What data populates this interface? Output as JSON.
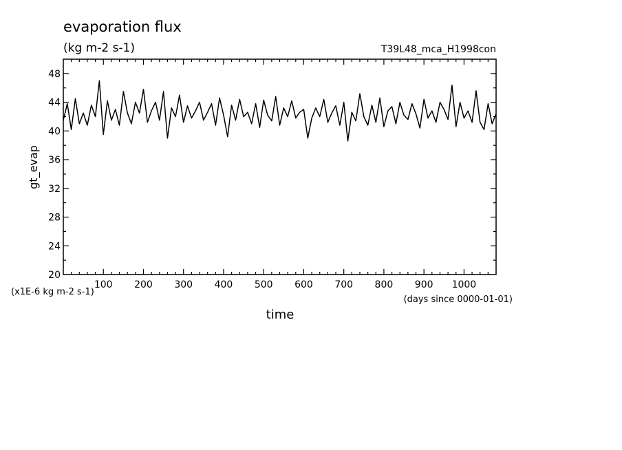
{
  "chart_data": {
    "type": "line",
    "title": "evaporation flux",
    "subtitle": "(kg m-2 s-1)",
    "run_label": "T39L48_mca_H1998con",
    "xlabel": "time",
    "x_unit_note": "(days since 0000-01-01)",
    "ylabel": "gt_evap",
    "y_unit_note": "(x1E-6 kg m-2 s-1)",
    "xlim": [
      0,
      1080
    ],
    "ylim": [
      20,
      50
    ],
    "xticks": [
      100,
      200,
      300,
      400,
      500,
      600,
      700,
      800,
      900,
      1000
    ],
    "yticks": [
      20,
      24,
      28,
      32,
      36,
      40,
      44,
      48
    ],
    "grid": false,
    "series": [
      {
        "x": [
          0,
          10,
          20,
          30,
          40,
          50,
          60,
          70,
          80,
          90,
          100,
          110,
          120,
          130,
          140,
          150,
          160,
          170,
          180,
          190,
          200,
          210,
          220,
          230,
          240,
          250,
          260,
          270,
          280,
          290,
          300,
          310,
          320,
          330,
          340,
          350,
          360,
          370,
          380,
          390,
          400,
          410,
          420,
          430,
          440,
          450,
          460,
          470,
          480,
          490,
          500,
          510,
          520,
          530,
          540,
          550,
          560,
          570,
          580,
          590,
          600,
          610,
          620,
          630,
          640,
          650,
          660,
          670,
          680,
          690,
          700,
          710,
          720,
          730,
          740,
          750,
          760,
          770,
          780,
          790,
          800,
          810,
          820,
          830,
          840,
          850,
          860,
          870,
          880,
          890,
          900,
          910,
          920,
          930,
          940,
          950,
          960,
          970,
          980,
          990,
          1000,
          1010,
          1020,
          1030,
          1040,
          1050,
          1060,
          1070,
          1080
        ],
        "values": [
          41.5,
          43.8,
          40.2,
          44.5,
          41.0,
          42.5,
          40.8,
          43.6,
          42.0,
          47.0,
          39.5,
          44.2,
          41.5,
          43.0,
          40.8,
          45.5,
          42.5,
          41.0,
          44.0,
          42.5,
          45.8,
          41.2,
          42.8,
          44.0,
          41.5,
          45.5,
          39.0,
          43.2,
          42.0,
          45.0,
          41.2,
          43.5,
          41.8,
          42.8,
          44.0,
          41.5,
          42.6,
          43.8,
          40.8,
          44.6,
          42.2,
          39.2,
          43.6,
          41.5,
          44.4,
          42.0,
          42.6,
          41.0,
          43.8,
          40.5,
          44.3,
          42.2,
          41.4,
          44.8,
          40.8,
          43.2,
          42.0,
          44.2,
          41.8,
          42.6,
          43.0,
          39.0,
          41.8,
          43.2,
          42.0,
          44.4,
          41.2,
          42.5,
          43.5,
          40.8,
          44.0,
          38.6,
          42.6,
          41.4,
          45.2,
          42.0,
          40.8,
          43.6,
          41.2,
          44.6,
          40.6,
          42.8,
          43.4,
          41.0,
          44.0,
          42.2,
          41.6,
          43.8,
          42.4,
          40.4,
          44.4,
          41.8,
          42.8,
          41.2,
          44.0,
          43.0,
          41.6,
          46.4,
          40.6,
          44.0,
          41.8,
          42.8,
          41.2,
          45.6,
          41.2,
          40.2,
          43.8,
          41.0,
          42.4
        ]
      }
    ]
  }
}
